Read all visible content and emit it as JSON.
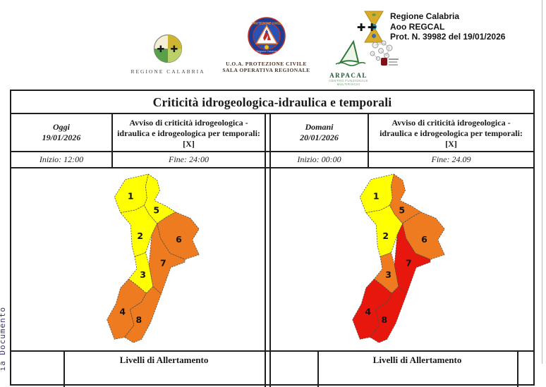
{
  "side_text": "ia Documento",
  "header": {
    "regione": {
      "caption": "REGIONE CALABRIA"
    },
    "protezione_civile": {
      "arc_top": "PROTEZIONE CIVILE",
      "arc_bottom": "Regione Calabria",
      "caption_line1": "U.O.A. PROTEZIONE CIVILE",
      "caption_line2": "SALA OPERATIVA REGIONALE"
    },
    "protocol": {
      "line1": "Regione Calabria",
      "line2": "Aoo REGCAL",
      "line3": "Prot. N. 39982 del 19/01/2026"
    },
    "arpacal": {
      "name": "ARPACAL",
      "caption": "CENTRO FUNZIONALE MULTIRISCHI"
    }
  },
  "table": {
    "title": "Criticità idrogeologica-idraulica e temporali",
    "today": {
      "day": "Oggi",
      "date": "19/01/2026",
      "avviso": "Avviso di criticità idrogeologica - idraulica e idrogeologica per temporali: [X]",
      "inizio": "Inizio: 12:00",
      "fine": "Fine: 24:00"
    },
    "tomorrow": {
      "day": "Domani",
      "date": "20/01/2026",
      "avviso": "Avviso di criticità idrogeologica - idraulica e idrogeologica per temporali: [X]",
      "inizio": "Inizio: 00:00",
      "fine": "Fine: 24.09"
    },
    "footer": {
      "left": "Livelli di Allertamento",
      "right": "Livelli di Allertamento"
    }
  },
  "maps": {
    "zones": [
      "1",
      "2",
      "3",
      "4",
      "5",
      "6",
      "7",
      "8"
    ],
    "colors": {
      "yellow": "#ffff00",
      "orange": "#ef7b21",
      "red": "#e8170e"
    },
    "days": [
      {
        "label": "Oggi 19/01/2026",
        "levels": {
          "1": "yellow",
          "2": "yellow",
          "3": "yellow",
          "4": "orange",
          "5": "yellow",
          "6": "orange",
          "7": "orange",
          "8": "orange"
        }
      },
      {
        "label": "Domani 20/01/2026",
        "levels": {
          "1": "yellow",
          "2": "yellow",
          "3": "orange",
          "4": "red",
          "5": "orange",
          "6": "orange",
          "7": "red",
          "8": "red"
        }
      }
    ]
  }
}
